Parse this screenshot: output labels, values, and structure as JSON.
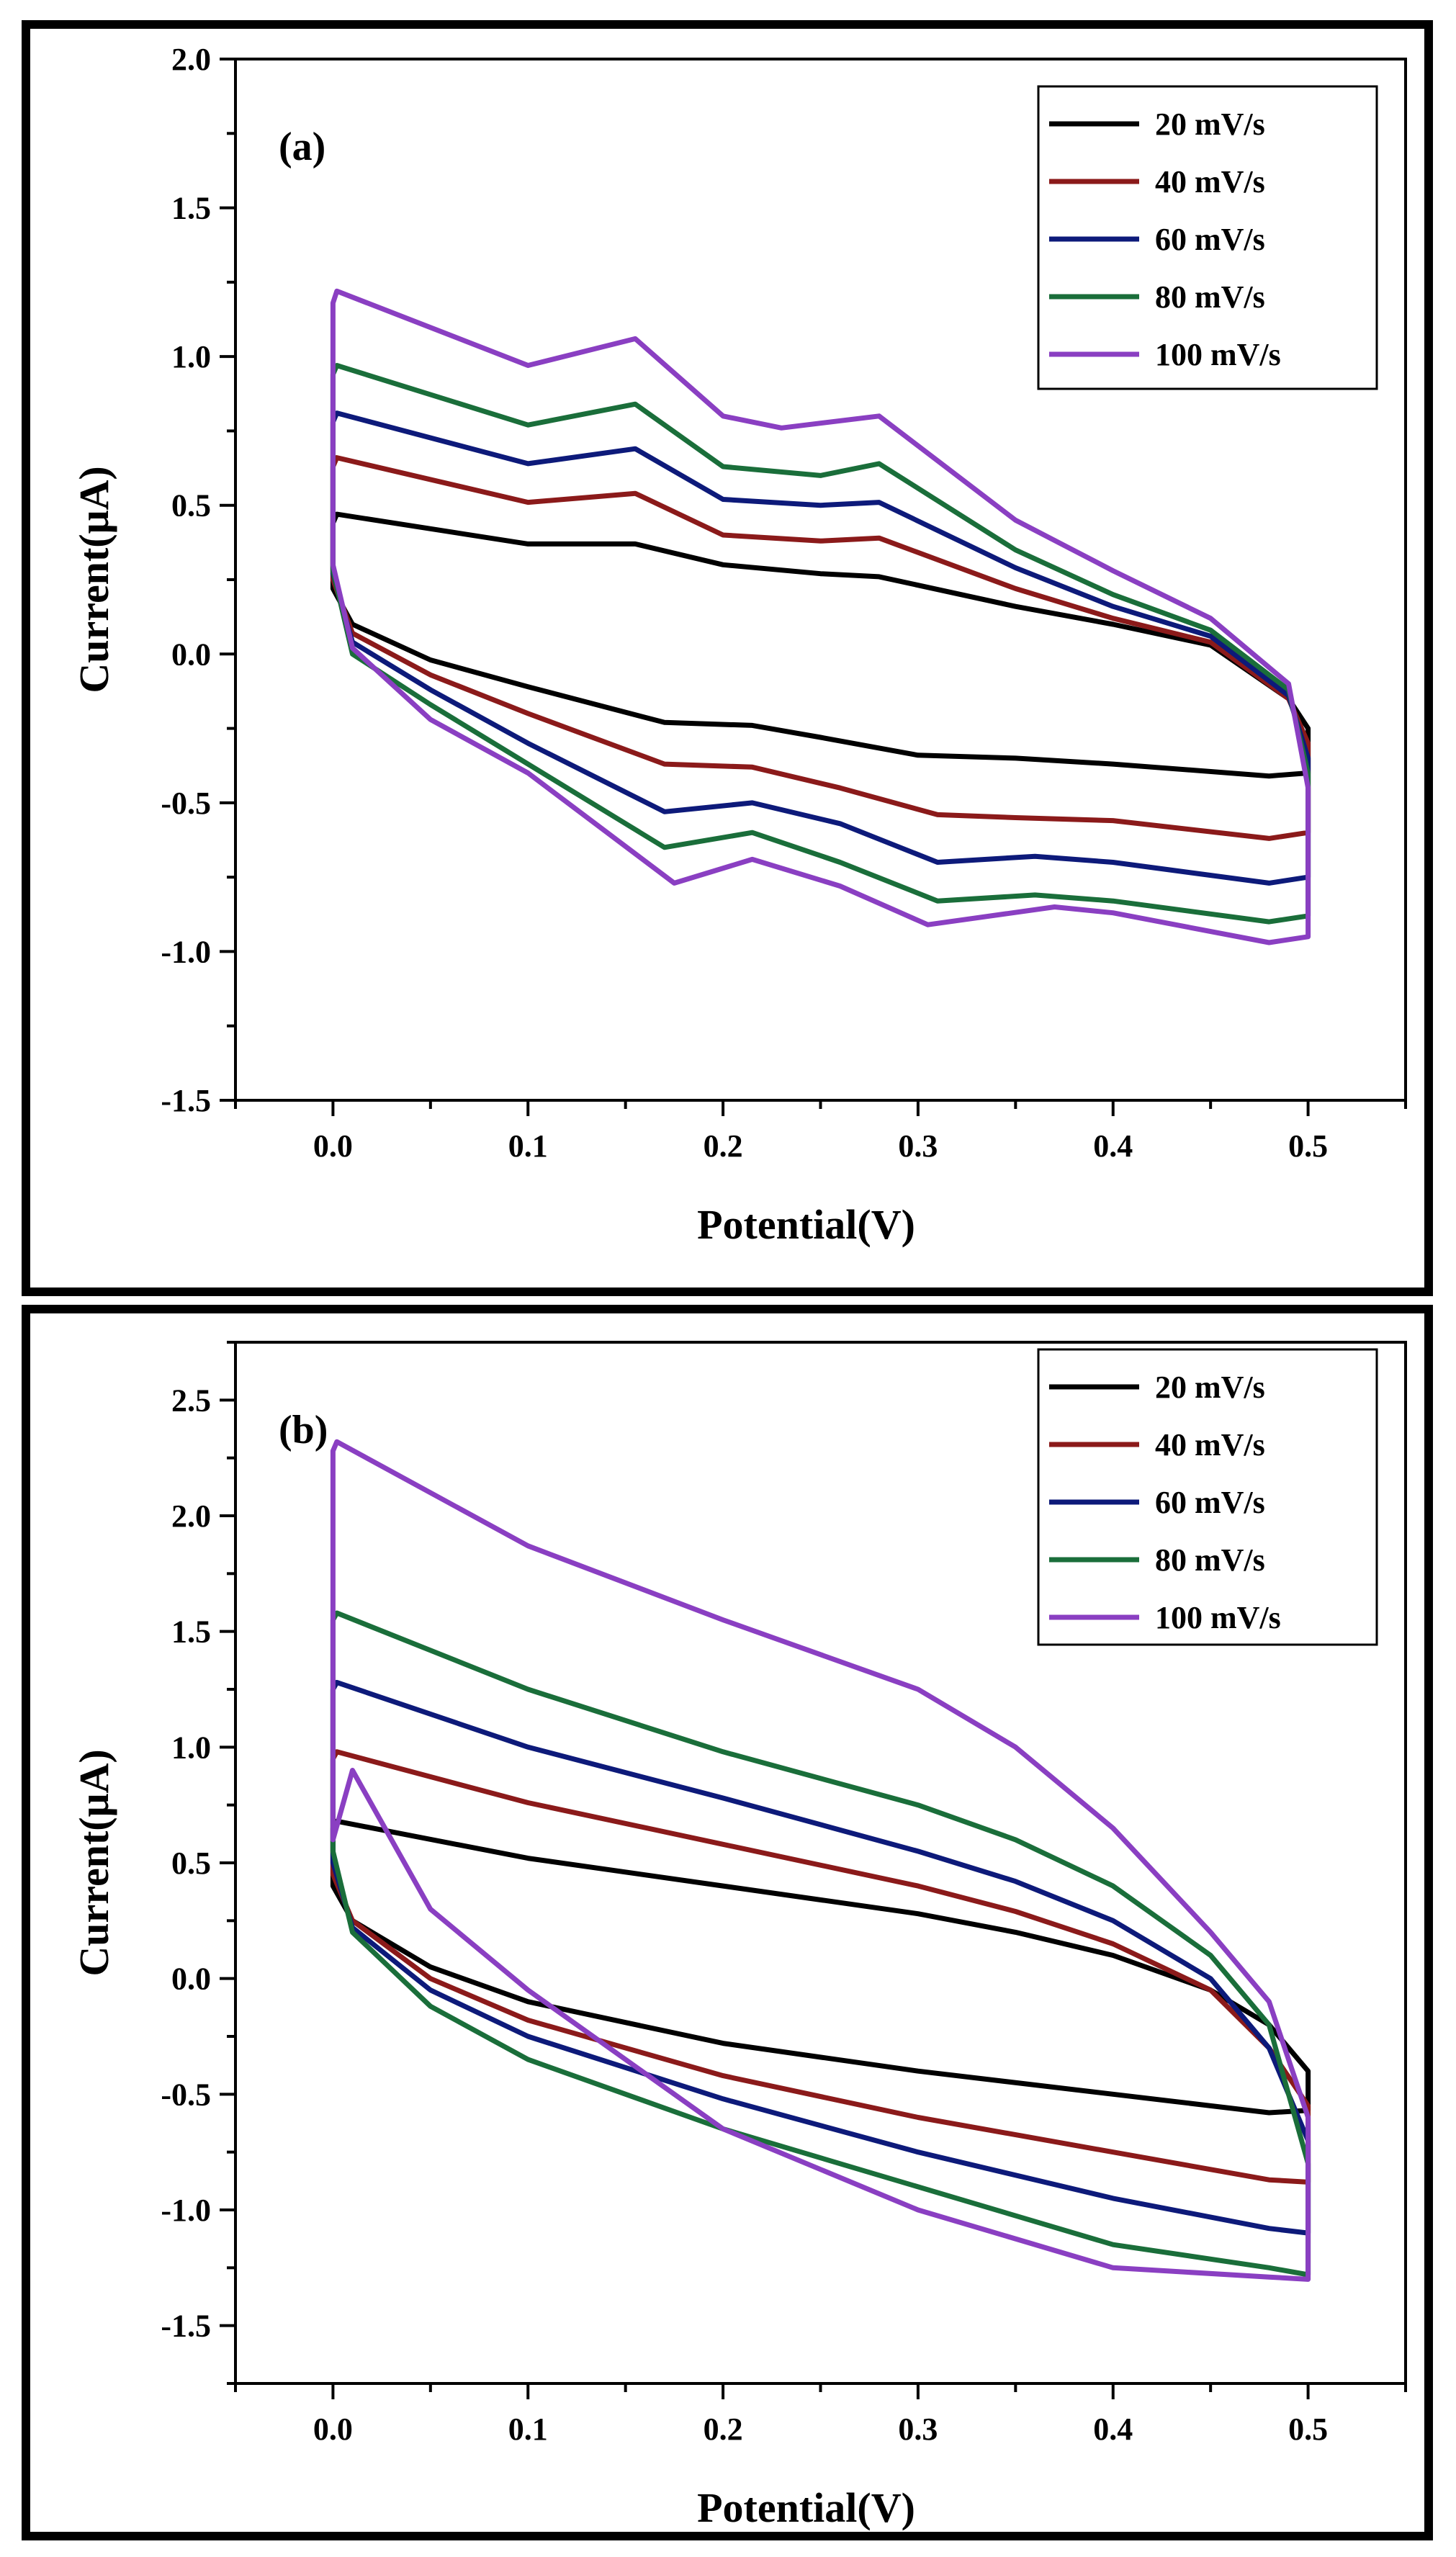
{
  "chart_data": [
    {
      "type": "line",
      "panel_label": "(a)",
      "panel_letter": "a",
      "xlabel": "Potential(V)",
      "ylabel": "Current(μA)",
      "xlim": [
        -0.05,
        0.55
      ],
      "ylim": [
        -1.5,
        2.0
      ],
      "xticks": [
        "0.0",
        "0.1",
        "0.2",
        "0.3",
        "0.4",
        "0.5"
      ],
      "yticks": [
        "-1.5",
        "-1.0",
        "-0.5",
        "0.0",
        "0.5",
        "1.0",
        "1.5",
        "2.0"
      ],
      "grid": false,
      "legend_position": "top-right",
      "series": [
        {
          "name": "20 mV/s",
          "color": "#000000",
          "x": [
            0.0,
            0.0,
            0.002,
            0.1,
            0.155,
            0.2,
            0.25,
            0.28,
            0.35,
            0.4,
            0.45,
            0.49,
            0.5,
            0.5,
            0.48,
            0.4,
            0.35,
            0.3,
            0.25,
            0.215,
            0.17,
            0.1,
            0.05,
            0.01,
            0.0
          ],
          "y": [
            0.22,
            0.44,
            0.47,
            0.37,
            0.37,
            0.3,
            0.27,
            0.26,
            0.16,
            0.1,
            0.03,
            -0.15,
            -0.25,
            -0.4,
            -0.41,
            -0.37,
            -0.35,
            -0.34,
            -0.28,
            -0.24,
            -0.23,
            -0.11,
            -0.02,
            0.1,
            0.22
          ]
        },
        {
          "name": "40 mV/s",
          "color": "#8b1a1a",
          "x": [
            0.0,
            0.0,
            0.002,
            0.1,
            0.155,
            0.2,
            0.25,
            0.28,
            0.35,
            0.4,
            0.45,
            0.49,
            0.5,
            0.5,
            0.48,
            0.4,
            0.35,
            0.31,
            0.26,
            0.215,
            0.17,
            0.1,
            0.05,
            0.01,
            0.0
          ],
          "y": [
            0.25,
            0.63,
            0.66,
            0.51,
            0.54,
            0.4,
            0.38,
            0.39,
            0.22,
            0.12,
            0.04,
            -0.15,
            -0.3,
            -0.6,
            -0.62,
            -0.56,
            -0.55,
            -0.54,
            -0.45,
            -0.38,
            -0.37,
            -0.2,
            -0.07,
            0.07,
            0.25
          ]
        },
        {
          "name": "60 mV/s",
          "color": "#0d1a7a",
          "x": [
            0.0,
            0.0,
            0.002,
            0.1,
            0.155,
            0.2,
            0.25,
            0.28,
            0.35,
            0.4,
            0.45,
            0.49,
            0.5,
            0.5,
            0.48,
            0.4,
            0.36,
            0.31,
            0.26,
            0.215,
            0.17,
            0.1,
            0.05,
            0.01,
            0.0
          ],
          "y": [
            0.27,
            0.78,
            0.81,
            0.64,
            0.69,
            0.52,
            0.5,
            0.51,
            0.29,
            0.16,
            0.06,
            -0.14,
            -0.35,
            -0.75,
            -0.77,
            -0.7,
            -0.68,
            -0.7,
            -0.57,
            -0.5,
            -0.53,
            -0.3,
            -0.12,
            0.04,
            0.27
          ]
        },
        {
          "name": "80 mV/s",
          "color": "#1a6e3a",
          "x": [
            0.0,
            0.0,
            0.002,
            0.1,
            0.155,
            0.2,
            0.25,
            0.28,
            0.35,
            0.4,
            0.45,
            0.49,
            0.5,
            0.5,
            0.48,
            0.4,
            0.36,
            0.31,
            0.26,
            0.215,
            0.17,
            0.1,
            0.05,
            0.01,
            0.0
          ],
          "y": [
            0.28,
            0.94,
            0.97,
            0.77,
            0.84,
            0.63,
            0.6,
            0.64,
            0.35,
            0.2,
            0.08,
            -0.12,
            -0.4,
            -0.88,
            -0.9,
            -0.83,
            -0.81,
            -0.83,
            -0.7,
            -0.6,
            -0.65,
            -0.37,
            -0.17,
            0.0,
            0.28
          ]
        },
        {
          "name": "100 mV/s",
          "color": "#8a3fc2",
          "x": [
            0.0,
            0.0,
            0.002,
            0.1,
            0.155,
            0.2,
            0.23,
            0.28,
            0.35,
            0.4,
            0.45,
            0.49,
            0.5,
            0.5,
            0.48,
            0.4,
            0.37,
            0.305,
            0.26,
            0.215,
            0.175,
            0.1,
            0.05,
            0.01,
            0.0
          ],
          "y": [
            0.3,
            1.18,
            1.22,
            0.97,
            1.06,
            0.8,
            0.76,
            0.8,
            0.45,
            0.28,
            0.12,
            -0.1,
            -0.45,
            -0.95,
            -0.97,
            -0.87,
            -0.85,
            -0.91,
            -0.78,
            -0.69,
            -0.77,
            -0.4,
            -0.22,
            0.02,
            0.3
          ]
        }
      ]
    },
    {
      "type": "line",
      "panel_label": "(b)",
      "panel_letter": "b",
      "xlabel": "Potential(V)",
      "ylabel": "Current(μA)",
      "xlim": [
        -0.05,
        0.55
      ],
      "ylim": [
        -1.75,
        2.75
      ],
      "xticks": [
        "0.0",
        "0.1",
        "0.2",
        "0.3",
        "0.4",
        "0.5"
      ],
      "yticks": [
        "-1.5",
        "-1.0",
        "-0.5",
        "0.0",
        "0.5",
        "1.0",
        "1.5",
        "2.0",
        "2.5"
      ],
      "grid": false,
      "legend_position": "top-right",
      "series": [
        {
          "name": "20 mV/s",
          "color": "#000000",
          "x": [
            0.0,
            0.0,
            0.002,
            0.1,
            0.2,
            0.3,
            0.35,
            0.4,
            0.45,
            0.48,
            0.5,
            0.5,
            0.48,
            0.4,
            0.3,
            0.2,
            0.1,
            0.05,
            0.01,
            0.0
          ],
          "y": [
            0.4,
            0.65,
            0.68,
            0.52,
            0.4,
            0.28,
            0.2,
            0.1,
            -0.05,
            -0.2,
            -0.4,
            -0.57,
            -0.58,
            -0.5,
            -0.4,
            -0.28,
            -0.1,
            0.05,
            0.25,
            0.4
          ]
        },
        {
          "name": "40 mV/s",
          "color": "#8b1a1a",
          "x": [
            0.0,
            0.0,
            0.002,
            0.1,
            0.2,
            0.3,
            0.35,
            0.4,
            0.45,
            0.48,
            0.5,
            0.5,
            0.48,
            0.4,
            0.3,
            0.2,
            0.1,
            0.05,
            0.01,
            0.0
          ],
          "y": [
            0.45,
            0.95,
            0.98,
            0.76,
            0.58,
            0.4,
            0.29,
            0.15,
            -0.05,
            -0.3,
            -0.55,
            -0.88,
            -0.87,
            -0.75,
            -0.6,
            -0.42,
            -0.18,
            0.0,
            0.25,
            0.45
          ]
        },
        {
          "name": "60 mV/s",
          "color": "#0d1a7a",
          "x": [
            0.0,
            0.0,
            0.002,
            0.1,
            0.2,
            0.3,
            0.35,
            0.4,
            0.45,
            0.48,
            0.5,
            0.5,
            0.48,
            0.4,
            0.3,
            0.2,
            0.1,
            0.05,
            0.01,
            0.0
          ],
          "y": [
            0.5,
            1.25,
            1.28,
            1.0,
            0.78,
            0.55,
            0.42,
            0.25,
            0.0,
            -0.3,
            -0.7,
            -1.1,
            -1.08,
            -0.95,
            -0.75,
            -0.52,
            -0.25,
            -0.05,
            0.22,
            0.5
          ]
        },
        {
          "name": "80 mV/s",
          "color": "#1a6e3a",
          "x": [
            0.0,
            0.0,
            0.002,
            0.1,
            0.2,
            0.3,
            0.35,
            0.4,
            0.45,
            0.48,
            0.5,
            0.5,
            0.48,
            0.4,
            0.3,
            0.2,
            0.1,
            0.05,
            0.01,
            0.0
          ],
          "y": [
            0.55,
            1.55,
            1.58,
            1.25,
            0.98,
            0.75,
            0.6,
            0.4,
            0.1,
            -0.2,
            -0.8,
            -1.28,
            -1.25,
            -1.15,
            -0.9,
            -0.65,
            -0.35,
            -0.12,
            0.2,
            0.55
          ]
        },
        {
          "name": "100 mV/s",
          "color": "#8a3fc2",
          "x": [
            0.0,
            0.0,
            0.002,
            0.1,
            0.2,
            0.3,
            0.35,
            0.4,
            0.45,
            0.48,
            0.5,
            0.5,
            0.48,
            0.4,
            0.3,
            0.2,
            0.1,
            0.05,
            0.01,
            0.0
          ],
          "y": [
            0.6,
            2.28,
            2.32,
            1.87,
            1.55,
            1.25,
            1.0,
            0.65,
            0.2,
            -0.1,
            -0.6,
            -1.3,
            -1.29,
            -1.25,
            -1.0,
            -0.65,
            -0.05,
            0.3,
            0.9,
            0.6
          ]
        }
      ]
    }
  ]
}
